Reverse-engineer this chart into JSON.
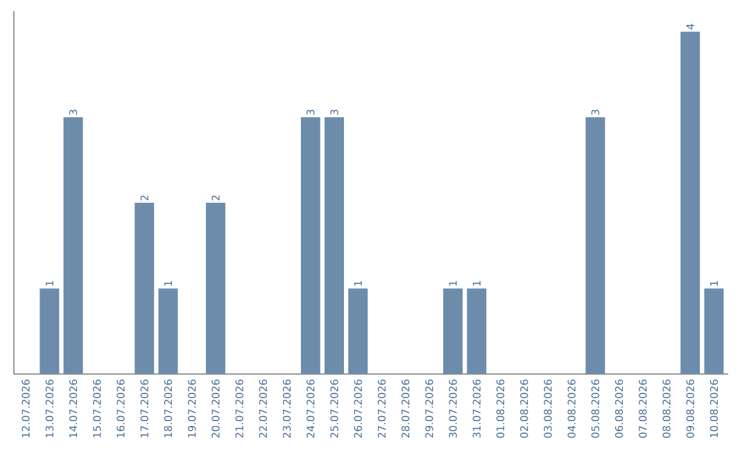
{
  "chart_data": {
    "type": "bar",
    "categories": [
      "12.07.2026",
      "13.07.2026",
      "14.07.2026",
      "15.07.2026",
      "16.07.2026",
      "17.07.2026",
      "18.07.2026",
      "19.07.2026",
      "20.07.2026",
      "21.07.2026",
      "22.07.2026",
      "23.07.2026",
      "24.07.2026",
      "25.07.2026",
      "26.07.2026",
      "27.07.2026",
      "28.07.2026",
      "29.07.2026",
      "30.07.2026",
      "31.07.2026",
      "01.08.2026",
      "02.08.2026",
      "03.08.2026",
      "04.08.2026",
      "05.08.2026",
      "06.08.2026",
      "07.08.2026",
      "08.08.2026",
      "09.08.2026",
      "10.08.2026"
    ],
    "values": [
      0,
      1,
      3,
      0,
      0,
      2,
      1,
      0,
      2,
      0,
      0,
      0,
      3,
      3,
      1,
      0,
      0,
      0,
      1,
      1,
      0,
      0,
      0,
      0,
      3,
      0,
      0,
      0,
      4,
      1
    ],
    "value_labels": [
      null,
      "1",
      "3",
      null,
      null,
      "2",
      "1",
      null,
      "2",
      null,
      null,
      null,
      "3",
      "3",
      "1",
      null,
      null,
      null,
      "1",
      "1",
      null,
      null,
      null,
      null,
      "3",
      null,
      null,
      null,
      "4",
      "1"
    ],
    "color": "#6d8cab",
    "tick_labels": "x"
  }
}
